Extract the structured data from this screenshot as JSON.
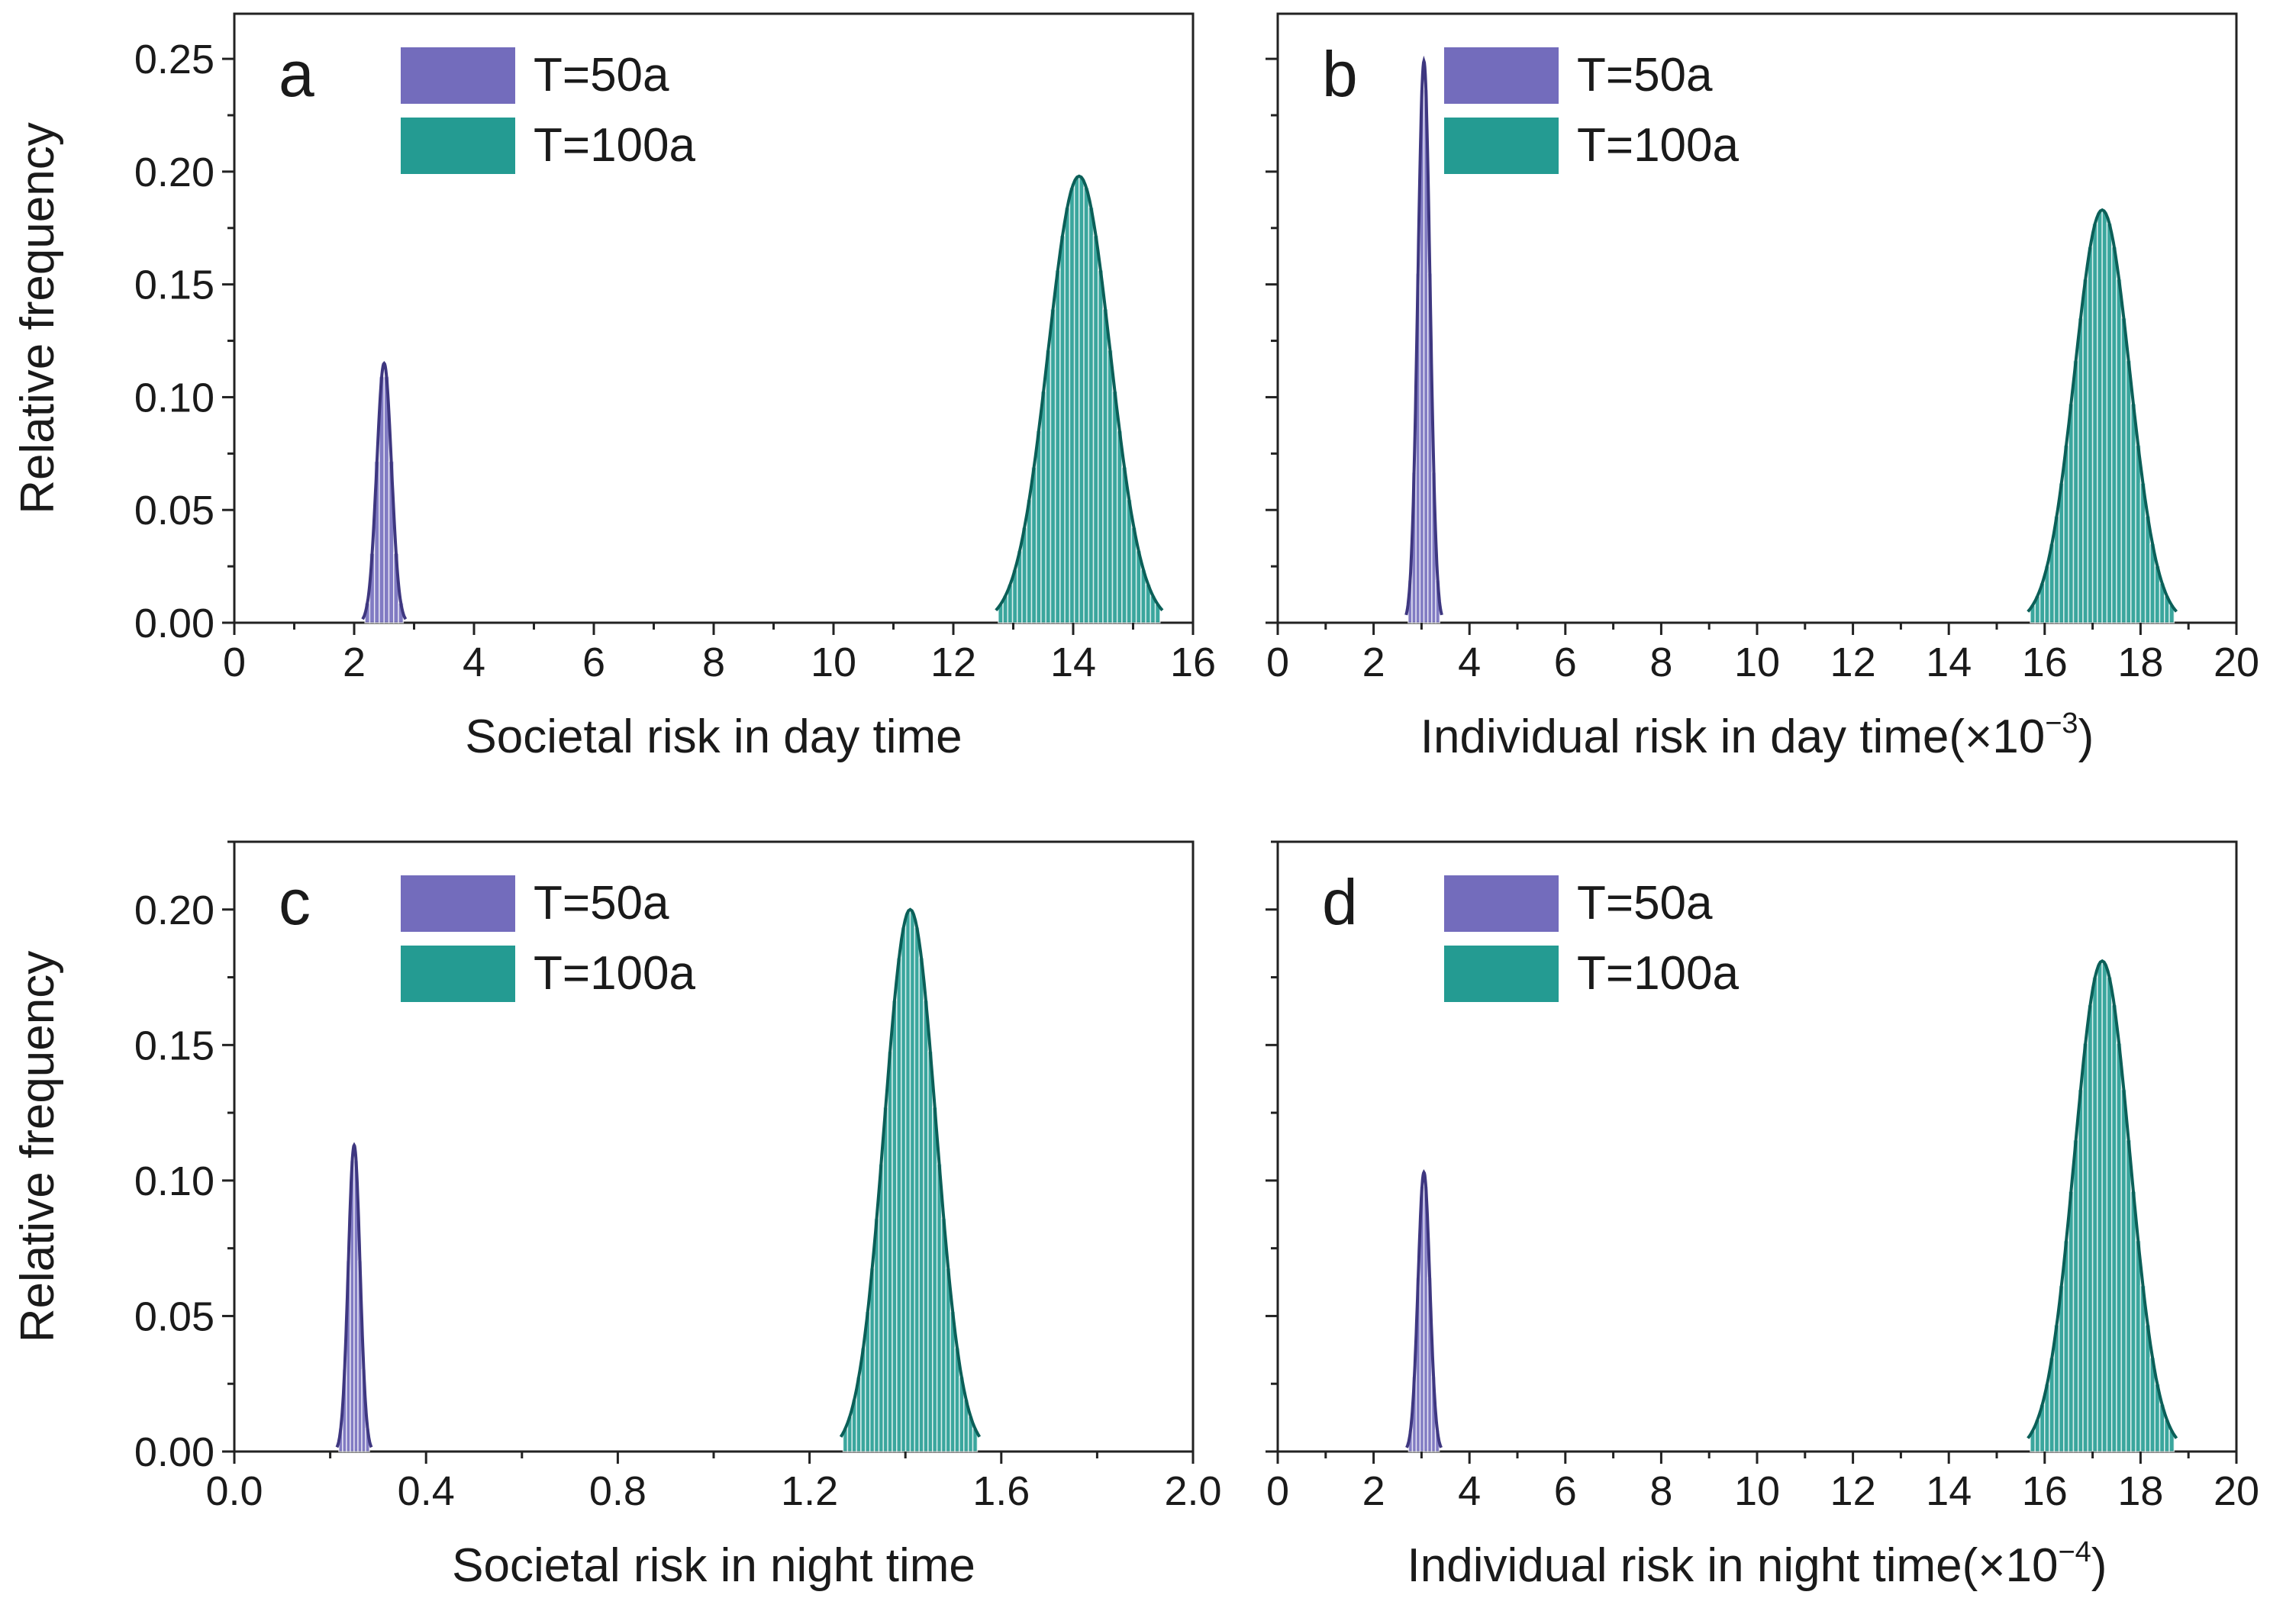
{
  "figure": {
    "ylabel": "Relative frequency"
  },
  "series_colors": {
    "T=50a": "#6b64b8",
    "T=100a": "#18968c"
  },
  "chart_data": [
    {
      "id": "a",
      "type": "histogram",
      "panel_label": "a",
      "title": "",
      "xlabel": "Societal risk in day time",
      "xlabel_exponent": "",
      "ylabel": "Relative frequency",
      "xlim": [
        0,
        16
      ],
      "ylim": [
        0,
        0.27
      ],
      "x_major": 2,
      "x_tick_labels": [
        "0",
        "2",
        "4",
        "6",
        "8",
        "10",
        "12",
        "14",
        "16"
      ],
      "x_tick_values": [
        0,
        2,
        4,
        6,
        8,
        10,
        12,
        14,
        16
      ],
      "y_tick_labels": [
        "0.00",
        "0.05",
        "0.10",
        "0.15",
        "0.20",
        "0.25"
      ],
      "y_tick_values": [
        0,
        0.05,
        0.1,
        0.15,
        0.2,
        0.25
      ],
      "legend": [
        "T=50a",
        "T=100a"
      ],
      "series": [
        {
          "name": "T=50a",
          "center": 2.5,
          "half_width": 0.32,
          "peak": 0.115,
          "n_bins": 8
        },
        {
          "name": "T=100a",
          "center": 14.1,
          "half_width": 1.35,
          "peak": 0.198,
          "n_bins": 34
        }
      ]
    },
    {
      "id": "b",
      "type": "histogram",
      "panel_label": "b",
      "title": "",
      "xlabel": "Individual risk in day time(×10",
      "xlabel_exponent": "−3",
      "xlabel_suffix": ")",
      "ylabel": "",
      "xlim": [
        0,
        20
      ],
      "ylim": [
        0,
        0.27
      ],
      "x_major": 2,
      "x_tick_labels": [
        "0",
        "2",
        "4",
        "6",
        "8",
        "10",
        "12",
        "14",
        "16",
        "18",
        "20"
      ],
      "x_tick_values": [
        0,
        2,
        4,
        6,
        8,
        10,
        12,
        14,
        16,
        18,
        20
      ],
      "y_tick_labels": [],
      "y_tick_values": [
        0,
        0.05,
        0.1,
        0.15,
        0.2,
        0.25
      ],
      "legend": [
        "T=50a",
        "T=100a"
      ],
      "series": [
        {
          "name": "T=50a",
          "center": 3.05,
          "half_width": 0.33,
          "peak": 0.249,
          "n_bins": 8
        },
        {
          "name": "T=100a",
          "center": 17.2,
          "half_width": 1.5,
          "peak": 0.183,
          "n_bins": 30
        }
      ]
    },
    {
      "id": "c",
      "type": "histogram",
      "panel_label": "c",
      "title": "",
      "xlabel": "Societal risk in night time",
      "xlabel_exponent": "",
      "ylabel": "Relative frequency",
      "xlim": [
        0,
        2.0
      ],
      "ylim": [
        0,
        0.225
      ],
      "x_major": 0.4,
      "x_tick_labels": [
        "0.0",
        "0.4",
        "0.8",
        "1.2",
        "1.6",
        "2.0"
      ],
      "x_tick_values": [
        0,
        0.4,
        0.8,
        1.2,
        1.6,
        2.0
      ],
      "y_tick_labels": [
        "0.00",
        "0.05",
        "0.10",
        "0.15",
        "0.20"
      ],
      "y_tick_values": [
        0,
        0.05,
        0.1,
        0.15,
        0.2
      ],
      "legend": [
        "T=50a",
        "T=100a"
      ],
      "series": [
        {
          "name": "T=50a",
          "center": 0.25,
          "half_width": 0.032,
          "peak": 0.113,
          "n_bins": 8
        },
        {
          "name": "T=100a",
          "center": 1.41,
          "half_width": 0.14,
          "peak": 0.2,
          "n_bins": 30
        }
      ]
    },
    {
      "id": "d",
      "type": "histogram",
      "panel_label": "d",
      "title": "",
      "xlabel": "Individual risk in night time(×10",
      "xlabel_exponent": "−4",
      "xlabel_suffix": ")",
      "ylabel": "",
      "xlim": [
        0,
        20
      ],
      "ylim": [
        0,
        0.225
      ],
      "x_major": 2,
      "x_tick_labels": [
        "0",
        "2",
        "4",
        "6",
        "8",
        "10",
        "12",
        "14",
        "16",
        "18",
        "20"
      ],
      "x_tick_values": [
        0,
        2,
        4,
        6,
        8,
        10,
        12,
        14,
        16,
        18,
        20
      ],
      "y_tick_labels": [],
      "y_tick_values": [
        0,
        0.05,
        0.1,
        0.15,
        0.2
      ],
      "legend": [
        "T=50a",
        "T=100a"
      ],
      "series": [
        {
          "name": "T=50a",
          "center": 3.05,
          "half_width": 0.32,
          "peak": 0.103,
          "n_bins": 8
        },
        {
          "name": "T=100a",
          "center": 17.2,
          "half_width": 1.5,
          "peak": 0.181,
          "n_bins": 30
        }
      ]
    }
  ]
}
